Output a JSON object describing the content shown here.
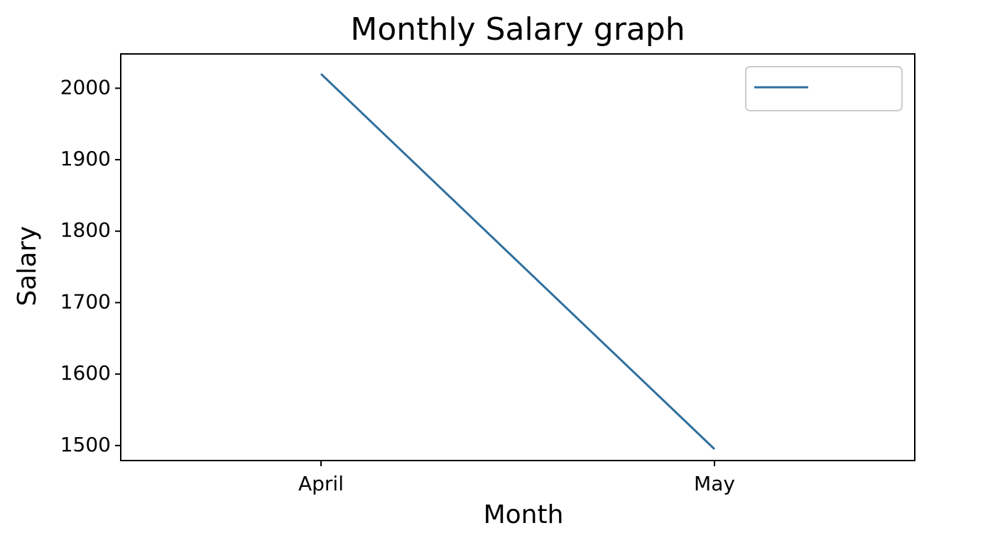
{
  "chart_data": {
    "type": "line",
    "title": "Monthly Salary graph",
    "x_label": "Month",
    "y_label": "Salary",
    "categories": [
      "April",
      "May"
    ],
    "series": [
      {
        "color": "#2f6f9f",
        "values": [
          2020,
          1495
        ]
      }
    ],
    "ylim": [
      1479,
      2048
    ],
    "yticks": [
      1500,
      1600,
      1700,
      1800,
      1900,
      2000
    ],
    "legend": "upper right",
    "grid": false
  }
}
